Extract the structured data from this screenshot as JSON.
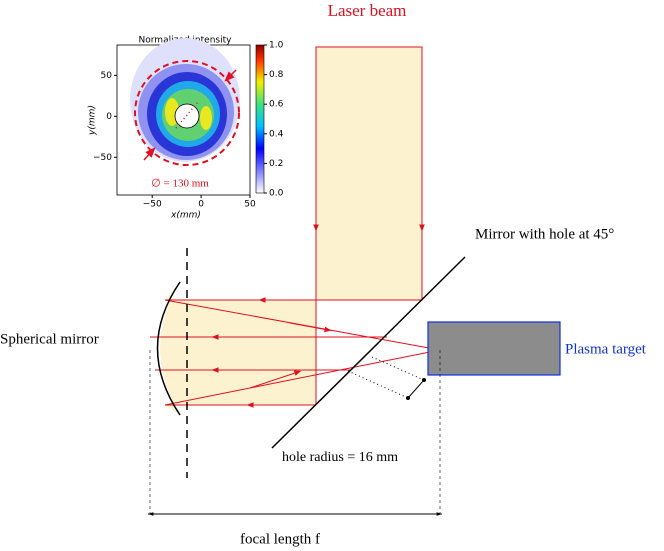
{
  "title": "Laser beam",
  "inset": {
    "title": "Normalized intensity",
    "xlabel": "x(mm)",
    "ylabel": "y(mm)",
    "xlim": [
      -86,
      50
    ],
    "ylim": [
      -96,
      87
    ],
    "xticks": [
      {
        "value": -50,
        "label": "−50"
      },
      0,
      50
    ],
    "yticks": [
      50,
      0,
      {
        "value": -50,
        "label": "−50"
      }
    ],
    "colorbar_lim": [
      0,
      1
    ],
    "colorbar_ticks": [
      {
        "value": 1,
        "label": "1.0"
      },
      0.8,
      0.6,
      0.4,
      0.2,
      {
        "value": 0,
        "label": "0.0"
      }
    ],
    "annotation": "∅ = 130 mm"
  },
  "labels": {
    "mirror": "Mirror with hole at 45°",
    "spherical": "Spherical mirror",
    "target": "Plasma target",
    "hole": "hole radius = 16 mm",
    "focal": "focal length f"
  }
}
